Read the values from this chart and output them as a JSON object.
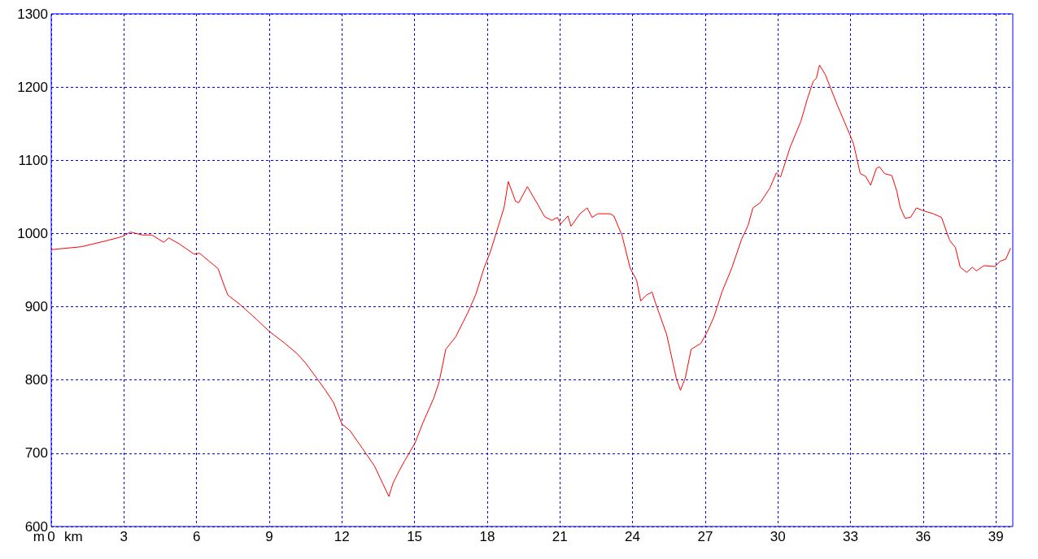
{
  "chart_data": {
    "type": "line",
    "xlabel": "km",
    "ylabel": "m",
    "xlim": [
      0,
      39.7
    ],
    "xticks": [
      0,
      3,
      6,
      9,
      12,
      15,
      18,
      21,
      24,
      27,
      30,
      33,
      36,
      39
    ],
    "ylim": [
      600,
      1300
    ],
    "yticks": [
      600,
      700,
      800,
      900,
      1000,
      1100,
      1200,
      1300
    ],
    "grid": true,
    "line_style": "solid",
    "marker": "none",
    "series": [
      {
        "color": "#ff0000",
        "x": [
          0,
          1.25,
          2.26,
          2.94,
          3.27,
          3.77,
          4.15,
          4.65,
          4.85,
          5.28,
          5.89,
          6.13,
          6.49,
          6.89,
          7.16,
          7.29,
          7.8,
          8.47,
          8.98,
          9.65,
          10.15,
          10.48,
          10.82,
          11.32,
          11.66,
          12.0,
          12.33,
          12.84,
          13.34,
          13.94,
          14.11,
          14.35,
          14.58,
          15.02,
          15.35,
          15.79,
          16.02,
          16.29,
          16.7,
          17.2,
          17.53,
          17.87,
          18.13,
          18.44,
          18.7,
          18.87,
          19.17,
          19.3,
          19.66,
          20.1,
          20.37,
          20.67,
          20.9,
          21.03,
          21.33,
          21.46,
          21.83,
          22.13,
          22.33,
          22.56,
          23.07,
          23.23,
          23.57,
          23.9,
          24.17,
          24.34,
          24.57,
          24.81,
          24.94,
          25.41,
          25.81,
          25.98,
          26.18,
          26.42,
          26.82,
          27.09,
          27.36,
          27.69,
          28.1,
          28.5,
          28.77,
          28.97,
          29.27,
          29.67,
          29.94,
          30.11,
          30.52,
          30.95,
          31.22,
          31.46,
          31.59,
          31.72,
          31.96,
          32.46,
          32.96,
          33.13,
          33.4,
          33.63,
          33.83,
          34.07,
          34.2,
          34.4,
          34.71,
          34.91,
          35.05,
          35.25,
          35.48,
          35.72,
          36.02,
          36.42,
          36.76,
          37.09,
          37.33,
          37.53,
          37.8,
          38.03,
          38.2,
          38.5,
          38.97,
          39.17,
          39.41,
          39.61
        ],
        "values": [
          978,
          982,
          990,
          996,
          1002,
          998,
          998,
          988,
          994,
          986,
          972,
          973,
          963,
          952,
          927,
          916,
          903,
          883,
          867,
          850,
          836,
          824,
          809,
          786,
          769,
          740,
          731,
          707,
          683,
          641,
          659,
          675,
          689,
          714,
          742,
          775,
          798,
          842,
          859,
          892,
          917,
          953,
          975,
          1008,
          1036,
          1071,
          1044,
          1042,
          1064,
          1039,
          1023,
          1018,
          1022,
          1013,
          1024,
          1010,
          1027,
          1035,
          1022,
          1027,
          1027,
          1024,
          997,
          953,
          936,
          908,
          916,
          920,
          906,
          862,
          802,
          786,
          803,
          842,
          850,
          866,
          886,
          920,
          953,
          992,
          1011,
          1035,
          1042,
          1062,
          1083,
          1077,
          1119,
          1153,
          1184,
          1208,
          1212,
          1230,
          1217,
          1175,
          1136,
          1122,
          1082,
          1078,
          1066,
          1089,
          1091,
          1082,
          1079,
          1058,
          1036,
          1021,
          1022,
          1035,
          1031,
          1027,
          1022,
          991,
          981,
          954,
          947,
          954,
          949,
          956,
          955,
          962,
          965,
          980
        ]
      }
    ]
  }
}
